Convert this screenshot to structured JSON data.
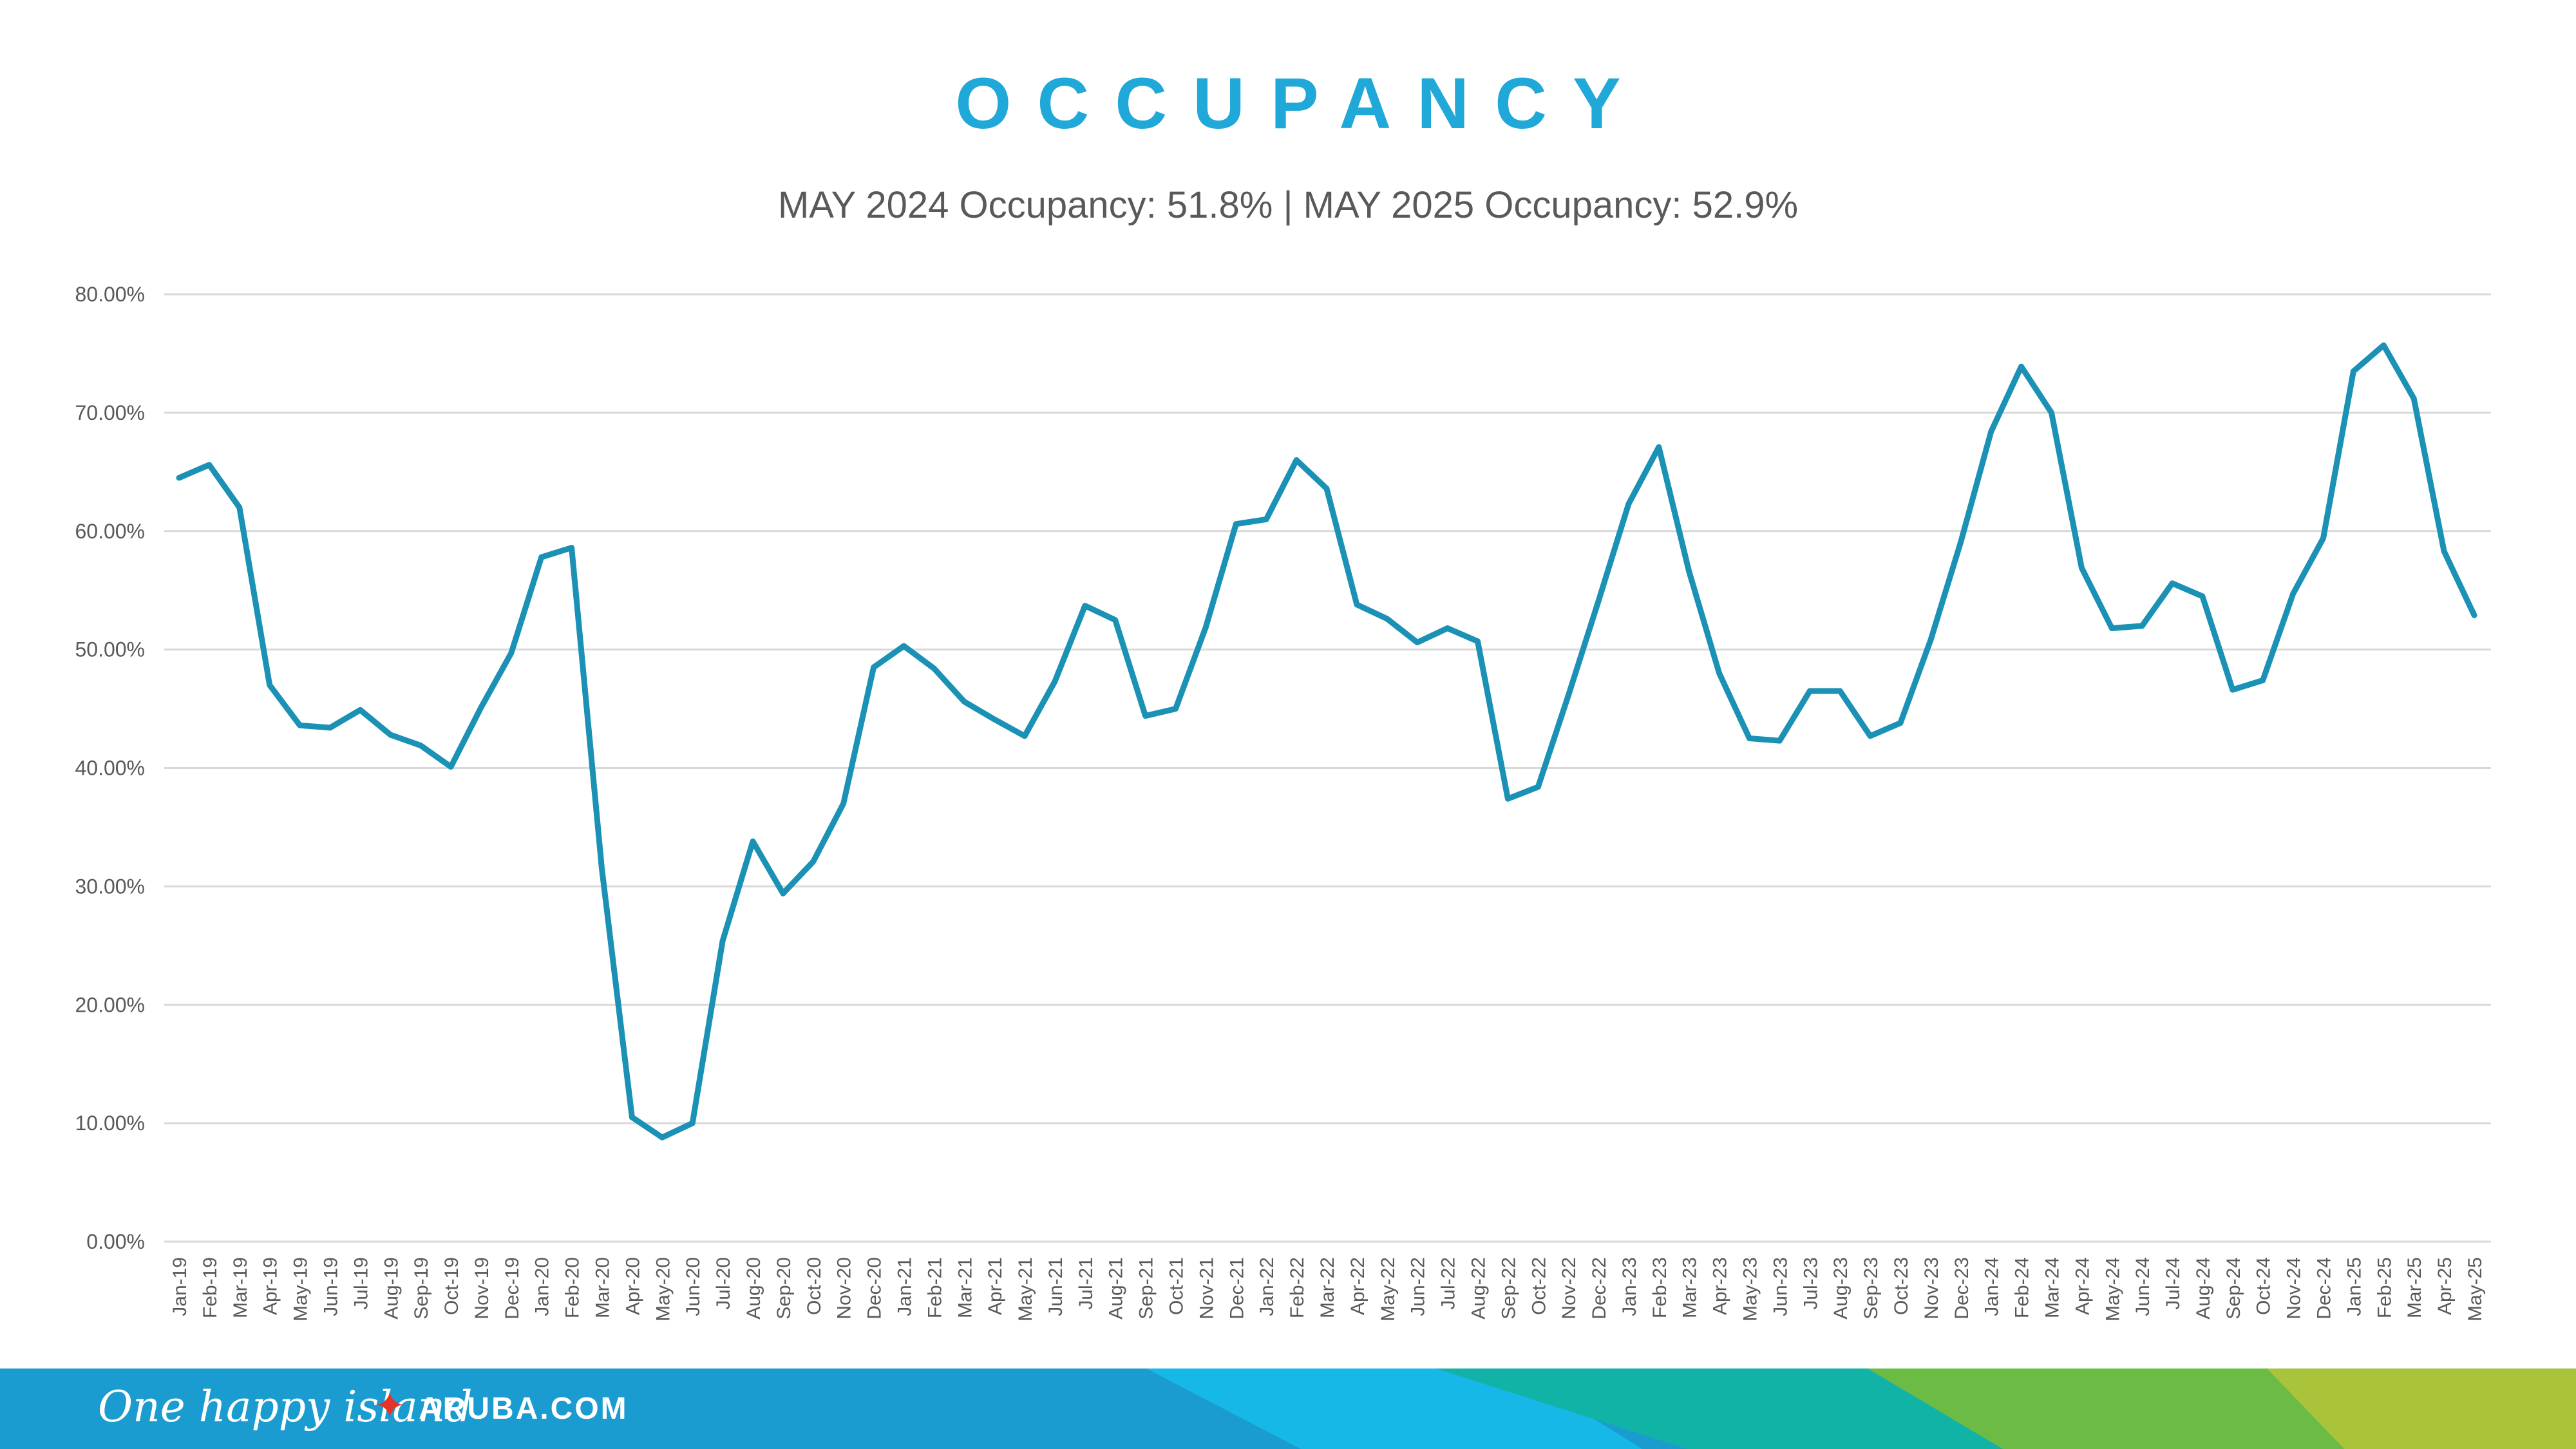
{
  "page": {
    "title": "OCCUPANCY",
    "subtitle": "MAY 2024 Occupancy: 51.8% | MAY 2025 Occupancy: 52.9%"
  },
  "footer": {
    "slogan": "One happy island",
    "star_icon": "star-icon",
    "site": "ARUBA.COM"
  },
  "colors": {
    "title": "#1fa8d8",
    "line": "#1a91b5",
    "grid": "#d9d9d9",
    "text": "#595959",
    "footer_blue": "#1a9cd0",
    "footer_cyan": "#16b8e8",
    "footer_teal": "#10b3a6",
    "footer_green": "#6cbb45",
    "footer_lime": "#a9c33a",
    "star": "#e6332a"
  },
  "chart_data": {
    "type": "line",
    "title": "OCCUPANCY",
    "xlabel": "",
    "ylabel": "",
    "ylim": [
      0,
      80
    ],
    "y_ticks": [
      "0.00%",
      "10.00%",
      "20.00%",
      "30.00%",
      "40.00%",
      "50.00%",
      "60.00%",
      "70.00%",
      "80.00%"
    ],
    "grid": true,
    "categories": [
      "Jan-19",
      "Feb-19",
      "Mar-19",
      "Apr-19",
      "May-19",
      "Jun-19",
      "Jul-19",
      "Aug-19",
      "Sep-19",
      "Oct-19",
      "Nov-19",
      "Dec-19",
      "Jan-20",
      "Feb-20",
      "Mar-20",
      "Apr-20",
      "May-20",
      "Jun-20",
      "Jul-20",
      "Aug-20",
      "Sep-20",
      "Oct-20",
      "Nov-20",
      "Dec-20",
      "Jan-21",
      "Feb-21",
      "Mar-21",
      "Apr-21",
      "May-21",
      "Jun-21",
      "Jul-21",
      "Aug-21",
      "Sep-21",
      "Oct-21",
      "Nov-21",
      "Dec-21",
      "Jan-22",
      "Feb-22",
      "Mar-22",
      "Apr-22",
      "May-22",
      "Jun-22",
      "Jul-22",
      "Aug-22",
      "Sep-22",
      "Oct-22",
      "Nov-22",
      "Dec-22",
      "Jan-23",
      "Feb-23",
      "Mar-23",
      "Apr-23",
      "May-23",
      "Jun-23",
      "Jul-23",
      "Aug-23",
      "Sep-23",
      "Oct-23",
      "Nov-23",
      "Dec-23",
      "Jan-24",
      "Feb-24",
      "Mar-24",
      "Apr-24",
      "May-24",
      "Jun-24",
      "Jul-24",
      "Aug-24",
      "Sep-24",
      "Oct-24",
      "Nov-24",
      "Dec-24",
      "Jan-25",
      "Feb-25",
      "Mar-25",
      "Apr-25",
      "May-25"
    ],
    "series": [
      {
        "name": "Occupancy",
        "values": [
          64.5,
          65.6,
          62.0,
          47.0,
          43.6,
          43.4,
          44.9,
          42.8,
          41.9,
          40.1,
          45.1,
          49.7,
          57.8,
          58.6,
          31.5,
          10.5,
          8.8,
          10.0,
          25.4,
          33.8,
          29.4,
          32.1,
          37.0,
          48.5,
          50.3,
          48.4,
          45.6,
          44.1,
          42.7,
          47.3,
          53.7,
          52.5,
          44.4,
          45.0,
          51.9,
          60.6,
          61.0,
          66.0,
          63.6,
          53.8,
          52.6,
          50.6,
          51.8,
          50.7,
          37.4,
          38.4,
          46.1,
          54.1,
          62.3,
          67.1,
          56.6,
          48.0,
          42.5,
          42.3,
          46.5,
          46.5,
          42.7,
          43.8,
          50.8,
          59.1,
          68.4,
          73.9,
          70.0,
          56.9,
          51.8,
          52.0,
          55.6,
          54.5,
          46.6,
          47.4,
          54.7,
          59.4,
          73.5,
          75.7,
          71.2,
          58.3,
          52.9
        ]
      }
    ]
  }
}
